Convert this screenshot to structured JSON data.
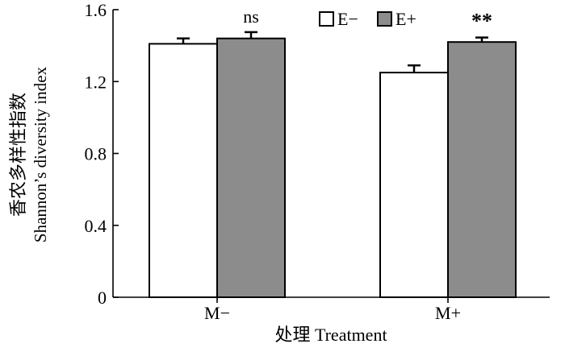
{
  "chart_data": {
    "type": "bar",
    "title": "",
    "categories": [
      "M−",
      "M+"
    ],
    "series": [
      {
        "name": "E−",
        "values": [
          1.41,
          1.25
        ],
        "errors": [
          0.03,
          0.04
        ],
        "color": "#ffffff"
      },
      {
        "name": "E+",
        "values": [
          1.44,
          1.42
        ],
        "errors": [
          0.035,
          0.025
        ],
        "color": "#8c8c8c"
      }
    ],
    "significance": [
      "ns",
      "**"
    ],
    "ylabel_cn": "香农多样性指数",
    "ylabel_en": "Shannon’s diversity index",
    "xlabel": "处理 Treatment",
    "ylim": [
      0,
      1.6
    ],
    "yticks": [
      "0",
      "0.4",
      "0.8",
      "1.2",
      "1.6"
    ],
    "ytick_values": [
      0,
      0.4,
      0.8,
      1.2,
      1.6
    ],
    "grid": false,
    "legend_position": "top-right"
  }
}
